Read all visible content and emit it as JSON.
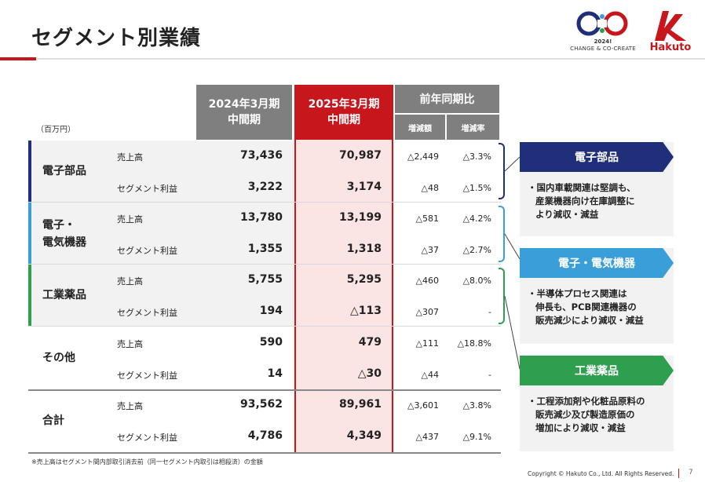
{
  "page": {
    "title": "セグメント別業績",
    "unit": "（百万円）",
    "footnote": "※売上高はセグメント間内部取引消去前（同一セグメント内取引は相殺済）の金額",
    "copyright": "Copyright © Hakuto Co., Ltd. All Rights Reserved.",
    "page_number": "7"
  },
  "logos": {
    "change_year": "2024!",
    "change_text": "CHANGE & CO-CREATE",
    "hakuto": "Hakuto"
  },
  "colors": {
    "accent_red": "#c8161d",
    "header_gray": "#7f7f7f",
    "electronic_parts": "#1f2f7a",
    "electronics_equipment": "#3a9fd8",
    "industrial_chemicals": "#2e9e4f"
  },
  "table": {
    "headers": {
      "fy2024": [
        "2024年3月期",
        "中間期"
      ],
      "fy2025": [
        "2025年3月期",
        "中間期"
      ],
      "yoy": "前年同期比",
      "diff": "増減額",
      "rate": "増減率"
    },
    "segments": [
      {
        "name": [
          "電子部品"
        ],
        "rows": [
          {
            "label": "売上高",
            "fy2024": "73,436",
            "fy2025": "70,987",
            "diff": "△2,449",
            "rate": "△3.3%"
          },
          {
            "label": "セグメント利益",
            "fy2024": "3,222",
            "fy2025": "3,174",
            "diff": "△48",
            "rate": "△1.5%"
          }
        ]
      },
      {
        "name": [
          "電子・",
          "電気機器"
        ],
        "rows": [
          {
            "label": "売上高",
            "fy2024": "13,780",
            "fy2025": "13,199",
            "diff": "△581",
            "rate": "△4.2%"
          },
          {
            "label": "セグメント利益",
            "fy2024": "1,355",
            "fy2025": "1,318",
            "diff": "△37",
            "rate": "△2.7%"
          }
        ]
      },
      {
        "name": [
          "工業薬品"
        ],
        "rows": [
          {
            "label": "売上高",
            "fy2024": "5,755",
            "fy2025": "5,295",
            "diff": "△460",
            "rate": "△8.0%"
          },
          {
            "label": "セグメント利益",
            "fy2024": "194",
            "fy2025": "△113",
            "diff": "△307",
            "rate": "-"
          }
        ]
      },
      {
        "name": [
          "その他"
        ],
        "rows": [
          {
            "label": "売上高",
            "fy2024": "590",
            "fy2025": "479",
            "diff": "△111",
            "rate": "△18.8%"
          },
          {
            "label": "セグメント利益",
            "fy2024": "14",
            "fy2025": "△30",
            "diff": "△44",
            "rate": "-"
          }
        ]
      },
      {
        "name": [
          "合計"
        ],
        "rows": [
          {
            "label": "売上高",
            "fy2024": "93,562",
            "fy2025": "89,961",
            "diff": "△3,601",
            "rate": "△3.8%"
          },
          {
            "label": "セグメント利益",
            "fy2024": "4,786",
            "fy2025": "4,349",
            "diff": "△437",
            "rate": "△9.1%"
          }
        ]
      }
    ]
  },
  "commentary": [
    {
      "title": "電子部品",
      "lines": [
        "・国内車載関連は堅調も、",
        "産業機器向け在庫調整に",
        "より減収・減益"
      ]
    },
    {
      "title": "電子・電気機器",
      "lines": [
        "・半導体プロセス関連は",
        "伸長も、PCB関連機器の",
        "販売減少により減収・減益"
      ]
    },
    {
      "title": "工業薬品",
      "lines": [
        "・工程添加剤や化粧品原料の",
        "販売減少及び製造原価の",
        "増加により減収・減益"
      ]
    }
  ]
}
